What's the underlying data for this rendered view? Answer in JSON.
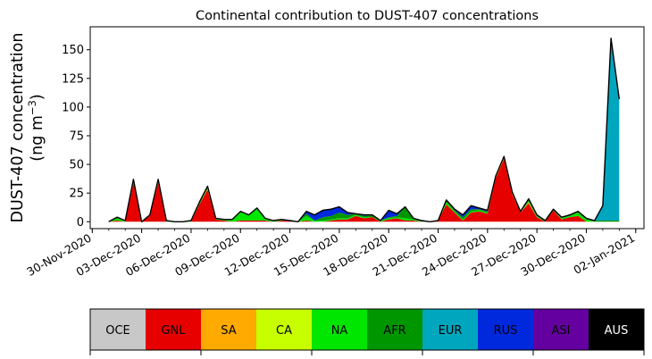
{
  "chart_data": {
    "type": "area",
    "stacked": true,
    "title": "Continental contribution to DUST-407 concentrations",
    "ylabel_line1": "DUST-407 concentration",
    "ylabel_line2": "(ng m",
    "ylabel_sup": "−3",
    "ylabel_close": ")",
    "ylim": [
      -6,
      170
    ],
    "yticks": [
      0,
      25,
      50,
      75,
      100,
      125,
      150
    ],
    "xlim": [
      "2020-11-29T21:00",
      "2021-01-02T12:00"
    ],
    "xticks": [
      {
        "date": "2020-11-30",
        "label": "30-Nov-2020"
      },
      {
        "date": "2020-12-03",
        "label": "03-Dec-2020"
      },
      {
        "date": "2020-12-06",
        "label": "06-Dec-2020"
      },
      {
        "date": "2020-12-09",
        "label": "09-Dec-2020"
      },
      {
        "date": "2020-12-12",
        "label": "12-Dec-2020"
      },
      {
        "date": "2020-12-15",
        "label": "15-Dec-2020"
      },
      {
        "date": "2020-12-18",
        "label": "18-Dec-2020"
      },
      {
        "date": "2020-12-21",
        "label": "21-Dec-2020"
      },
      {
        "date": "2020-12-24",
        "label": "24-Dec-2020"
      },
      {
        "date": "2020-12-27",
        "label": "27-Dec-2020"
      },
      {
        "date": "2020-12-30",
        "label": "30-Dec-2020"
      },
      {
        "date": "2021-01-02",
        "label": "02-Jan-2021"
      }
    ],
    "grid": false,
    "start": "2020-12-01T00:00",
    "step_hours": 12,
    "series": [
      {
        "name": "OCE",
        "color": "#c8c8c8",
        "values": [
          0,
          0,
          0,
          0,
          0,
          0,
          0,
          0,
          0,
          0,
          0,
          0,
          0,
          0,
          0,
          0,
          0,
          0,
          0,
          0,
          0,
          0,
          0,
          0,
          0,
          0,
          0,
          0,
          0,
          0,
          0,
          0,
          0,
          0,
          0,
          0,
          0,
          0,
          0,
          0,
          0,
          0,
          0,
          0,
          0,
          0,
          0,
          0,
          0,
          0,
          0,
          0,
          0,
          0,
          0,
          0,
          0,
          0,
          0,
          0,
          0,
          0,
          0
        ]
      },
      {
        "name": "GNL",
        "color": "#e60000",
        "values": [
          0,
          1,
          0,
          34,
          0,
          5,
          34,
          0,
          0,
          0,
          0,
          15,
          28,
          2,
          1,
          0,
          1,
          1,
          1,
          1,
          0,
          1,
          1,
          0,
          1,
          0,
          0,
          1,
          2,
          2,
          5,
          3,
          4,
          0,
          2,
          3,
          1,
          1,
          0,
          0,
          1,
          15,
          8,
          1,
          8,
          9,
          7,
          38,
          55,
          24,
          8,
          16,
          4,
          0,
          10,
          2,
          4,
          5,
          0,
          0,
          0,
          0,
          0
        ]
      },
      {
        "name": "SA",
        "color": "#ffaa00",
        "values": [
          0,
          0,
          0,
          1,
          0,
          0,
          1,
          0,
          0,
          0,
          0,
          0,
          1,
          0,
          0,
          0,
          0,
          0,
          0,
          0,
          0,
          0,
          0,
          0,
          0,
          0,
          0,
          0,
          0,
          0,
          0,
          0,
          0,
          0,
          0,
          0,
          0,
          0,
          0,
          0,
          0,
          0,
          0,
          0,
          0,
          0,
          0,
          1,
          1,
          1,
          0,
          1,
          0,
          0,
          0,
          0,
          0,
          0,
          0,
          0,
          0,
          0,
          0
        ]
      },
      {
        "name": "CA",
        "color": "#c8ff00",
        "values": [
          0,
          0,
          0,
          0,
          0,
          0,
          0,
          0,
          0,
          0,
          0,
          0,
          0,
          0,
          0,
          0,
          0,
          0,
          0,
          0,
          0,
          0,
          0,
          0,
          0,
          0,
          0,
          0,
          0,
          0,
          0,
          0,
          0,
          0,
          0,
          0,
          0,
          0,
          0,
          0,
          0,
          0,
          0,
          0,
          0,
          0,
          0,
          0,
          0,
          0,
          0,
          0,
          0,
          0,
          0,
          0,
          0,
          0,
          0,
          0,
          0,
          0,
          0
        ]
      },
      {
        "name": "NA",
        "color": "#00e600",
        "values": [
          0,
          2,
          1,
          1,
          0,
          0,
          1,
          1,
          0,
          0,
          1,
          1,
          1,
          1,
          1,
          2,
          8,
          5,
          10,
          2,
          1,
          1,
          0,
          0,
          4,
          1,
          1,
          1,
          1,
          1,
          1,
          1,
          0,
          1,
          1,
          1,
          2,
          1,
          0,
          0,
          0,
          2,
          1,
          1,
          1,
          1,
          1,
          0,
          0,
          0,
          0,
          1,
          1,
          0,
          0,
          1,
          1,
          3,
          2,
          0,
          0,
          0,
          0
        ]
      },
      {
        "name": "AFR",
        "color": "#009600",
        "values": [
          0,
          1,
          0,
          1,
          0,
          1,
          1,
          0,
          0,
          0,
          0,
          1,
          1,
          0,
          0,
          0,
          0,
          0,
          1,
          0,
          0,
          0,
          0,
          0,
          2,
          0,
          3,
          3,
          5,
          3,
          1,
          1,
          2,
          0,
          1,
          1,
          10,
          1,
          1,
          0,
          0,
          2,
          1,
          2,
          2,
          1,
          1,
          1,
          1,
          1,
          1,
          1,
          0,
          1,
          1,
          1,
          1,
          1,
          1,
          1,
          1,
          1,
          1
        ]
      },
      {
        "name": "EUR",
        "color": "#00a6be",
        "values": [
          0,
          0,
          0,
          0,
          0,
          0,
          0,
          0,
          0,
          0,
          0,
          0,
          0,
          0,
          0,
          0,
          0,
          0,
          0,
          0,
          0,
          0,
          0,
          0,
          0,
          0,
          0,
          0,
          0,
          0,
          0,
          0,
          0,
          0,
          0,
          0,
          0,
          0,
          0,
          0,
          0,
          0,
          0,
          0,
          0,
          0,
          0,
          0,
          0,
          0,
          0,
          0,
          0,
          0,
          0,
          0,
          0,
          0,
          0,
          0,
          13,
          159,
          106
        ]
      },
      {
        "name": "RUS",
        "color": "#0028dc",
        "values": [
          0,
          0,
          0,
          0,
          0,
          0,
          0,
          0,
          0,
          0,
          0,
          0,
          0,
          0,
          0,
          0,
          0,
          0,
          0,
          0,
          0,
          0,
          0,
          0,
          2,
          5,
          6,
          6,
          5,
          2,
          0,
          1,
          0,
          0,
          6,
          2,
          0,
          0,
          0,
          0,
          0,
          0,
          1,
          2,
          3,
          1,
          1,
          0,
          0,
          0,
          0,
          1,
          1,
          0,
          0,
          0,
          0,
          0,
          0,
          0,
          0,
          0,
          0
        ]
      },
      {
        "name": "ASI",
        "color": "#6400a0",
        "values": [
          0,
          0,
          0,
          0,
          0,
          0,
          0,
          0,
          0,
          0,
          0,
          0,
          0,
          0,
          0,
          0,
          0,
          0,
          0,
          0,
          0,
          0,
          0,
          0,
          0,
          0,
          0,
          0,
          0,
          0,
          0,
          0,
          0,
          0,
          0,
          0,
          0,
          0,
          0,
          0,
          0,
          0,
          0,
          0,
          0,
          0,
          0,
          0,
          0,
          0,
          0,
          0,
          0,
          0,
          0,
          0,
          0,
          0,
          0,
          0,
          0,
          0,
          0
        ]
      },
      {
        "name": "AUS",
        "color": "#000000",
        "values": [
          0,
          0,
          0,
          0,
          0,
          0,
          0,
          0,
          0,
          0,
          0,
          0,
          0,
          0,
          0,
          0,
          0,
          0,
          0,
          0,
          0,
          0,
          0,
          0,
          0,
          0,
          0,
          0,
          0,
          0,
          0,
          0,
          0,
          0,
          0,
          0,
          0,
          0,
          0,
          0,
          0,
          0,
          0,
          0,
          0,
          0,
          0,
          0,
          0,
          0,
          0,
          0,
          0,
          0,
          0,
          0,
          0,
          0,
          0,
          0,
          0,
          0,
          0
        ]
      }
    ],
    "colorbar": [
      {
        "label": "OCE",
        "color": "#c8c8c8",
        "text_color": "#000000"
      },
      {
        "label": "GNL",
        "color": "#e60000",
        "text_color": "#000000"
      },
      {
        "label": "SA",
        "color": "#ffaa00",
        "text_color": "#000000"
      },
      {
        "label": "CA",
        "color": "#c8ff00",
        "text_color": "#000000"
      },
      {
        "label": "NA",
        "color": "#00e600",
        "text_color": "#000000"
      },
      {
        "label": "AFR",
        "color": "#009600",
        "text_color": "#000000"
      },
      {
        "label": "EUR",
        "color": "#00a6be",
        "text_color": "#000000"
      },
      {
        "label": "RUS",
        "color": "#0028dc",
        "text_color": "#000000"
      },
      {
        "label": "ASI",
        "color": "#6400a0",
        "text_color": "#000000"
      },
      {
        "label": "AUS",
        "color": "#000000",
        "text_color": "#ffffff"
      }
    ]
  }
}
